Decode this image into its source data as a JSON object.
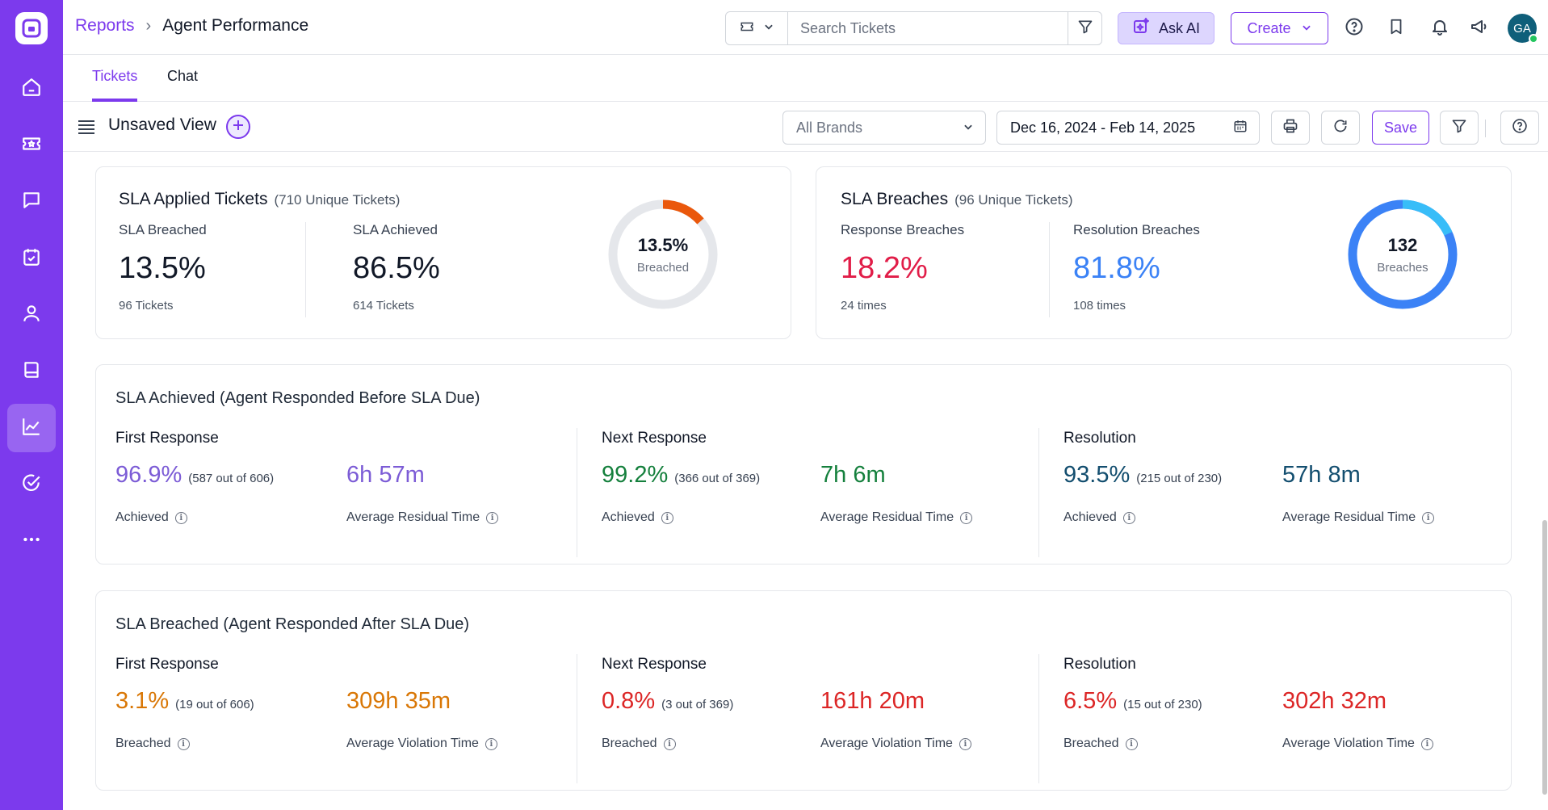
{
  "header": {
    "breadcrumb_root": "Reports",
    "breadcrumb_current": "Agent Performance",
    "search_placeholder": "Search Tickets",
    "ask_ai_label": "Ask AI",
    "create_label": "Create",
    "avatar_initials": "GA"
  },
  "tabs": [
    {
      "label": "Tickets",
      "active": true
    },
    {
      "label": "Chat",
      "active": false
    }
  ],
  "toolbar": {
    "view_title": "Unsaved View",
    "brand_select": "All Brands",
    "date_range": "Dec 16, 2024 - Feb 14, 2025",
    "save_label": "Save"
  },
  "sla_applied": {
    "title": "SLA Applied Tickets",
    "subtitle": "(710 Unique Tickets)",
    "breached_label": "SLA Breached",
    "breached_value": "13.5%",
    "breached_foot": "96 Tickets",
    "achieved_label": "SLA Achieved",
    "achieved_value": "86.5%",
    "achieved_foot": "614 Tickets",
    "donut_value": "13.5%",
    "donut_label": "Breached",
    "donut_fraction": 0.135
  },
  "sla_breaches": {
    "title": "SLA Breaches",
    "subtitle": "(96 Unique Tickets)",
    "response_label": "Response Breaches",
    "response_value": "18.2%",
    "response_foot": "24 times",
    "resolution_label": "Resolution Breaches",
    "resolution_value": "81.8%",
    "resolution_foot": "108 times",
    "donut_value": "132",
    "donut_label": "Breaches",
    "donut_fraction_response": 0.182
  },
  "achieved_section": {
    "title": "SLA Achieved (Agent Responded Before SLA Due)",
    "columns": [
      {
        "title": "First Response",
        "pct": "96.9%",
        "sub": "(587 out of 606)",
        "status": "Achieved",
        "time": "6h 57m",
        "time_label": "Average Residual Time"
      },
      {
        "title": "Next Response",
        "pct": "99.2%",
        "sub": "(366 out of 369)",
        "status": "Achieved",
        "time": "7h 6m",
        "time_label": "Average Residual Time"
      },
      {
        "title": "Resolution",
        "pct": "93.5%",
        "sub": "(215 out of 230)",
        "status": "Achieved",
        "time": "57h 8m",
        "time_label": "Average Residual Time"
      }
    ]
  },
  "breached_section": {
    "title": "SLA Breached (Agent Responded After SLA Due)",
    "columns": [
      {
        "title": "First Response",
        "pct": "3.1%",
        "sub": "(19 out of 606)",
        "status": "Breached",
        "time": "309h 35m",
        "time_label": "Average Violation Time"
      },
      {
        "title": "Next Response",
        "pct": "0.8%",
        "sub": "(3 out of 369)",
        "status": "Breached",
        "time": "161h 20m",
        "time_label": "Average Violation Time"
      },
      {
        "title": "Resolution",
        "pct": "6.5%",
        "sub": "(15 out of 230)",
        "status": "Breached",
        "time": "302h 32m",
        "time_label": "Average Violation Time"
      }
    ]
  },
  "colors": {
    "brand": "#7c3aed",
    "response_breach": "#e11d48",
    "resolution_breach": "#3b82f6",
    "donut_breach": "#ea580c",
    "achieved_first": "#7c5cd6",
    "achieved_next": "#15803d",
    "achieved_resolution": "#134e6f",
    "breached_first": "#d97706",
    "breached_red": "#dc2626"
  },
  "icons": {
    "sidebar": [
      "home-icon",
      "tickets-icon",
      "chat-icon",
      "tasks-icon",
      "contacts-icon",
      "knowledge-base-icon",
      "reports-icon",
      "approvals-icon",
      "more-icon"
    ]
  }
}
